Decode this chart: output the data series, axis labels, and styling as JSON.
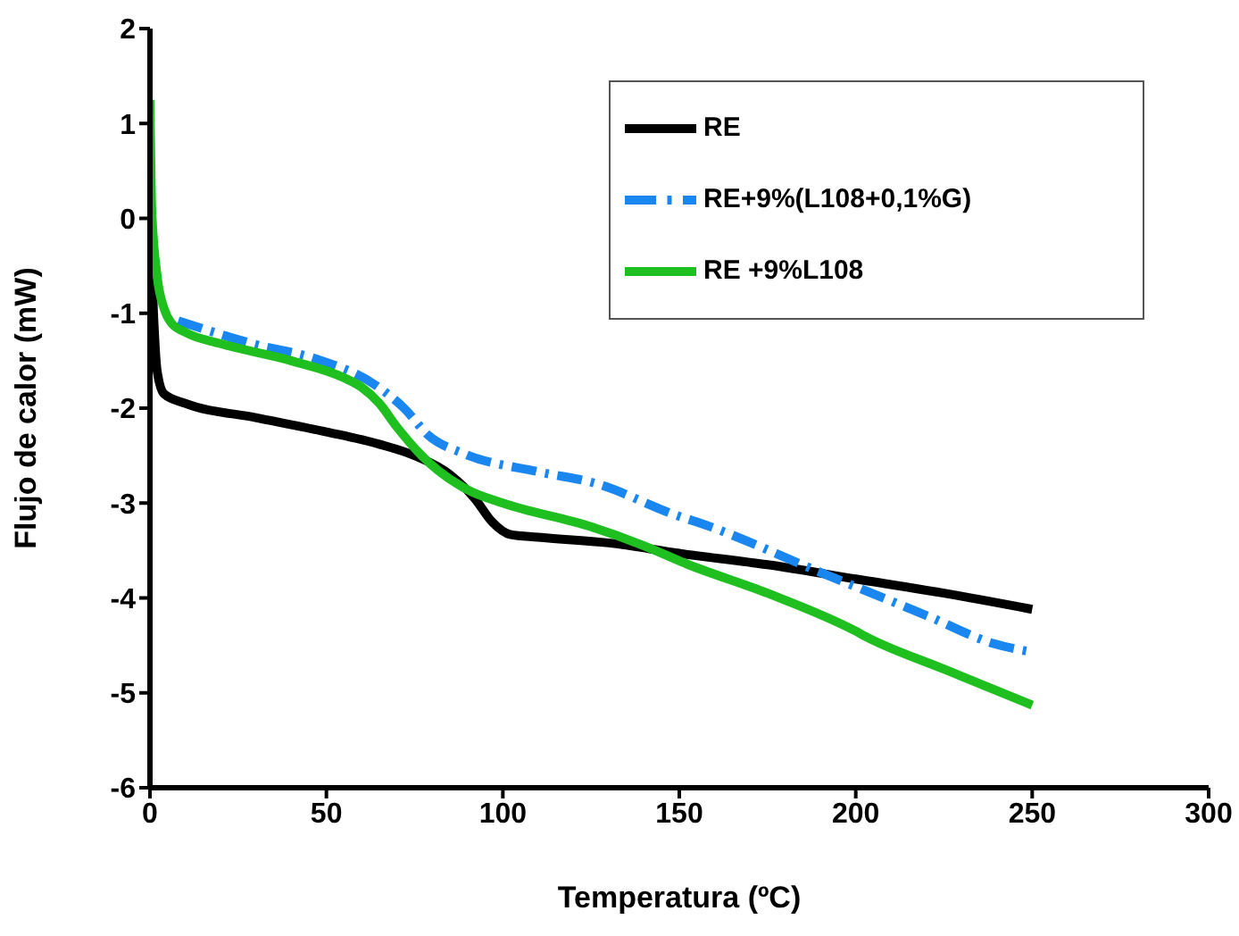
{
  "chart_data": {
    "type": "line",
    "xlabel": "Temperatura (ºC)",
    "ylabel": "Flujo de calor (mW)",
    "xlim": [
      0,
      300
    ],
    "xticks": [
      0,
      50,
      100,
      150,
      200,
      250,
      300
    ],
    "ylim": [
      -6,
      2
    ],
    "yticks": [
      -6,
      -5,
      -4,
      -3,
      -2,
      -1,
      0,
      1,
      2
    ],
    "legend": "top right",
    "marker": "none",
    "series": [
      {
        "name": "RE",
        "color": "#000000",
        "line_style": "solid",
        "x": [
          0,
          1,
          2,
          4,
          10,
          30,
          50,
          65,
          75,
          85,
          92,
          97,
          102,
          110,
          130,
          150,
          175,
          200,
          225,
          250
        ],
        "values": [
          0,
          -1,
          -1.6,
          -1.85,
          -1.95,
          -2.1,
          -2.25,
          -2.38,
          -2.5,
          -2.7,
          -2.95,
          -3.2,
          -3.33,
          -3.36,
          -3.42,
          -3.53,
          -3.65,
          -3.8,
          -3.95,
          -4.12
        ]
      },
      {
        "name": "RE+9%(L108+0,1%G)",
        "color": "#1a86f0",
        "line_style": "dashed",
        "x": [
          8,
          30,
          47,
          64,
          72,
          79,
          89,
          110,
          126,
          150,
          155,
          190,
          221,
          239,
          250
        ],
        "values": [
          -1.08,
          -1.33,
          -1.48,
          -1.76,
          -2.0,
          -2.29,
          -2.48,
          -2.67,
          -2.79,
          -3.14,
          -3.2,
          -3.73,
          -4.2,
          -4.48,
          -4.57
        ]
      },
      {
        "name": "RE +9%L108",
        "color": "#1fbf1f",
        "line_style": "solid",
        "x": [
          0,
          0.5,
          2,
          4,
          6,
          10,
          20,
          40,
          55,
          60,
          65,
          70,
          77,
          90,
          100,
          125,
          140,
          152,
          175,
          200,
          203,
          225,
          250
        ],
        "values": [
          1.25,
          0.1,
          -0.6,
          -0.95,
          -1.1,
          -1.2,
          -1.32,
          -1.5,
          -1.68,
          -1.78,
          -1.95,
          -2.2,
          -2.5,
          -2.86,
          -3.0,
          -3.25,
          -3.45,
          -3.64,
          -3.95,
          -4.35,
          -4.41,
          -4.75,
          -5.13
        ]
      }
    ]
  }
}
